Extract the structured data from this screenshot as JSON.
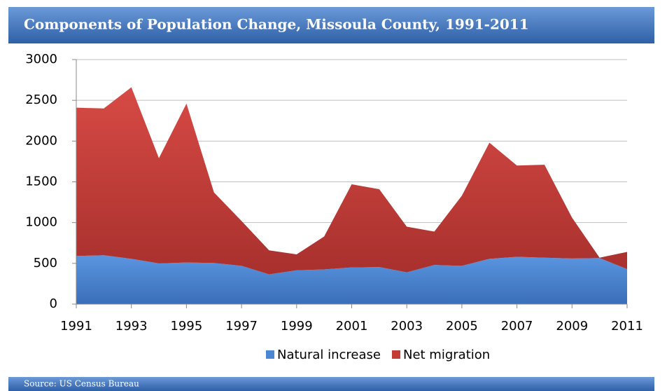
{
  "chart_data": {
    "type": "stacked_area",
    "title": "Components of Population Change, Missoula County, 1991-2011",
    "source": "Source: US Census Bureau",
    "x": [
      1991,
      1992,
      1993,
      1994,
      1995,
      1996,
      1997,
      1998,
      1999,
      2000,
      2001,
      2002,
      2003,
      2004,
      2005,
      2006,
      2007,
      2008,
      2009,
      2010,
      2011
    ],
    "series": [
      {
        "name": "Natural increase",
        "color": "#4a86d4",
        "values": [
          590,
          600,
          555,
          500,
          510,
          505,
          470,
          365,
          415,
          425,
          450,
          455,
          390,
          480,
          470,
          555,
          580,
          570,
          560,
          565,
          430
        ]
      },
      {
        "name": "Net migration",
        "color": "#c43c38",
        "values": [
          1820,
          1800,
          2105,
          1290,
          1950,
          865,
          550,
          295,
          195,
          405,
          1020,
          955,
          560,
          410,
          860,
          1425,
          1120,
          1140,
          500,
          5,
          210
        ]
      }
    ],
    "xlim": [
      1991,
      2011
    ],
    "xticks": [
      1991,
      1993,
      1995,
      1997,
      1999,
      2001,
      2003,
      2005,
      2007,
      2009,
      2011
    ],
    "ylim": [
      0,
      3000
    ],
    "yticks": [
      0,
      500,
      1000,
      1500,
      2000,
      2500,
      3000
    ],
    "grid": true,
    "legend": "bottom"
  }
}
